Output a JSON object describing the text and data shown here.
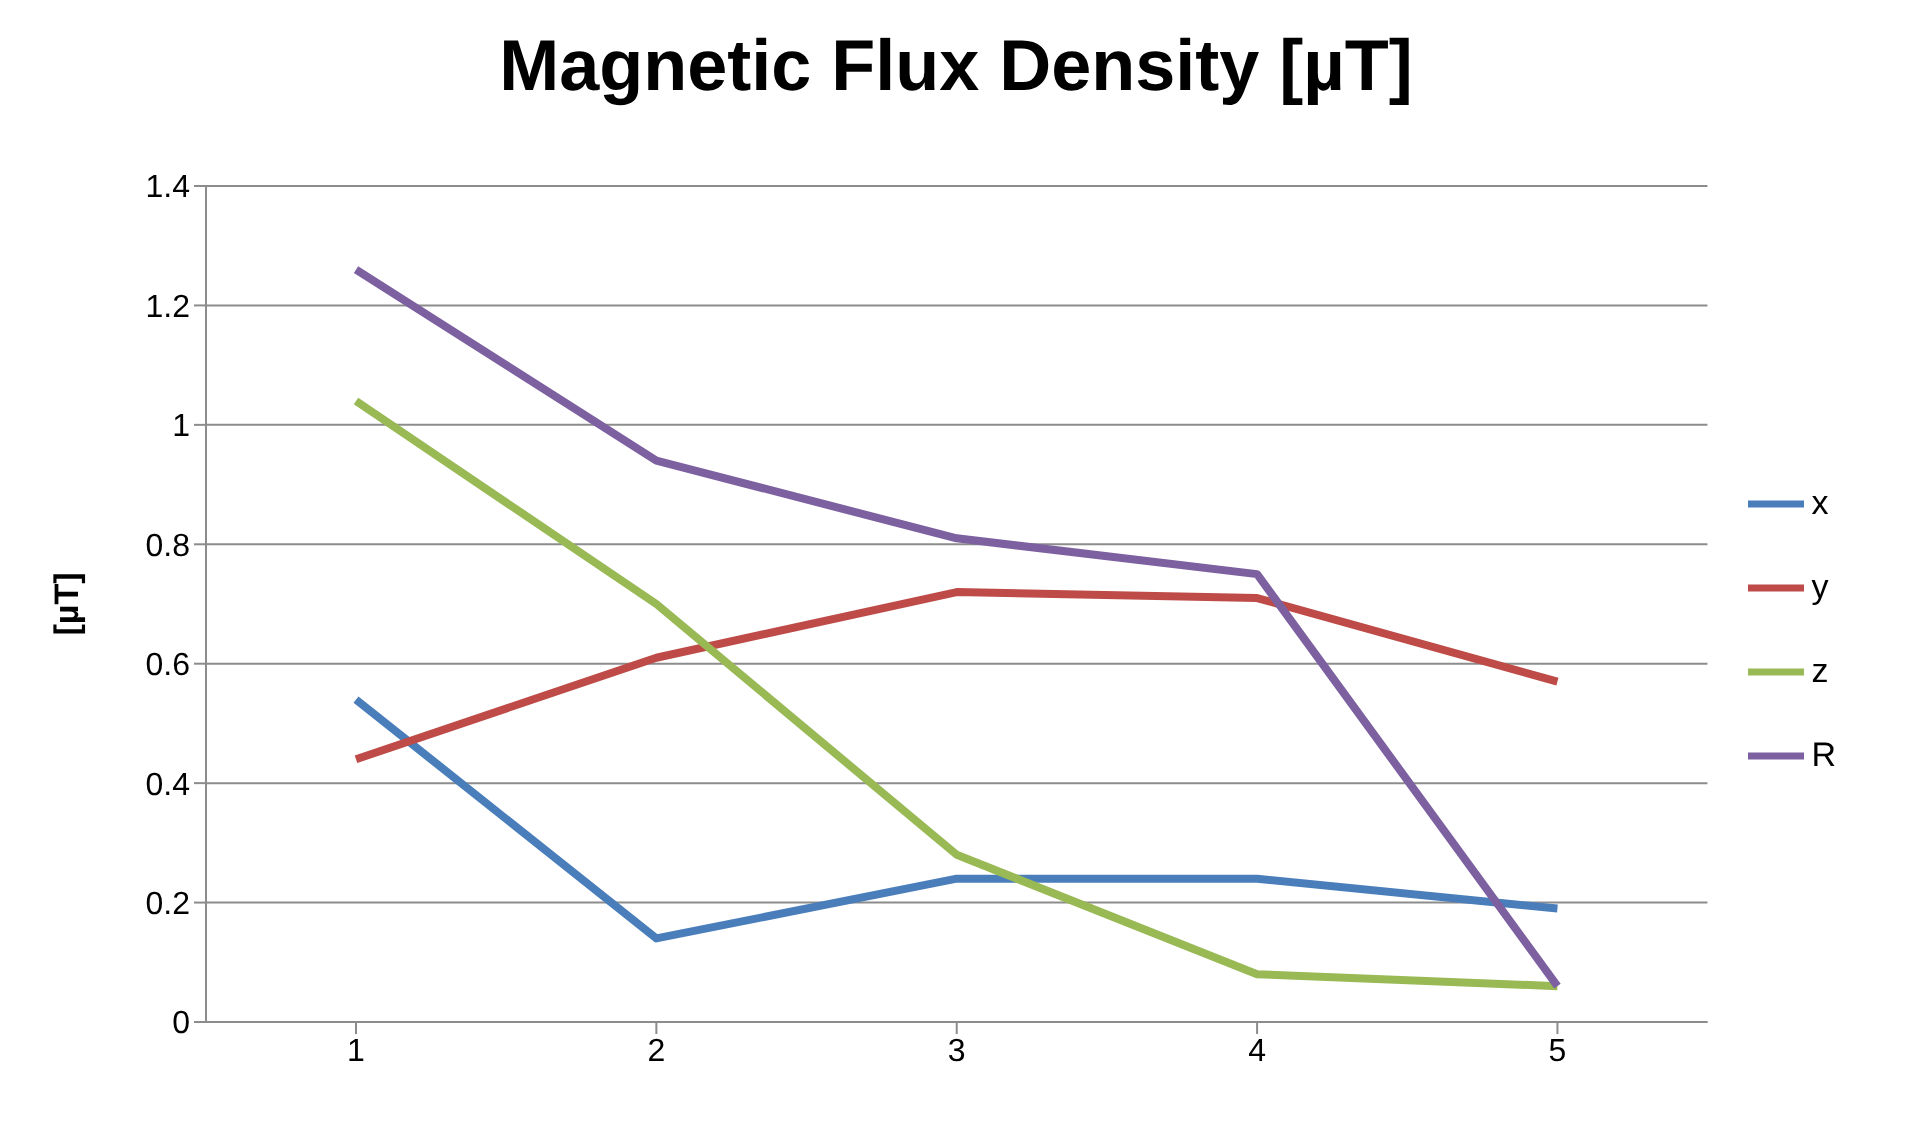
{
  "chart_data": {
    "type": "line",
    "title": "Magnetic Flux Density [µT]",
    "ylabel": "[µT]",
    "categories": [
      "1",
      "2",
      "3",
      "4",
      "5"
    ],
    "series": [
      {
        "name": "x",
        "color": "#4a7ebb",
        "values": [
          0.54,
          0.14,
          0.24,
          0.24,
          0.19
        ]
      },
      {
        "name": "y",
        "color": "#be4b48",
        "values": [
          0.44,
          0.61,
          0.72,
          0.71,
          0.57
        ]
      },
      {
        "name": "z",
        "color": "#98b954",
        "values": [
          1.04,
          0.7,
          0.28,
          0.08,
          0.06
        ]
      },
      {
        "name": "R",
        "color": "#7d60a0",
        "values": [
          1.26,
          0.94,
          0.81,
          0.75,
          0.06
        ]
      }
    ],
    "ylim": [
      0,
      1.4
    ],
    "yticks": [
      0,
      0.2,
      0.4,
      0.6,
      0.8,
      1,
      1.2,
      1.4
    ],
    "grid": "y",
    "legend": "right",
    "marker": "none",
    "line_style": "solid"
  }
}
